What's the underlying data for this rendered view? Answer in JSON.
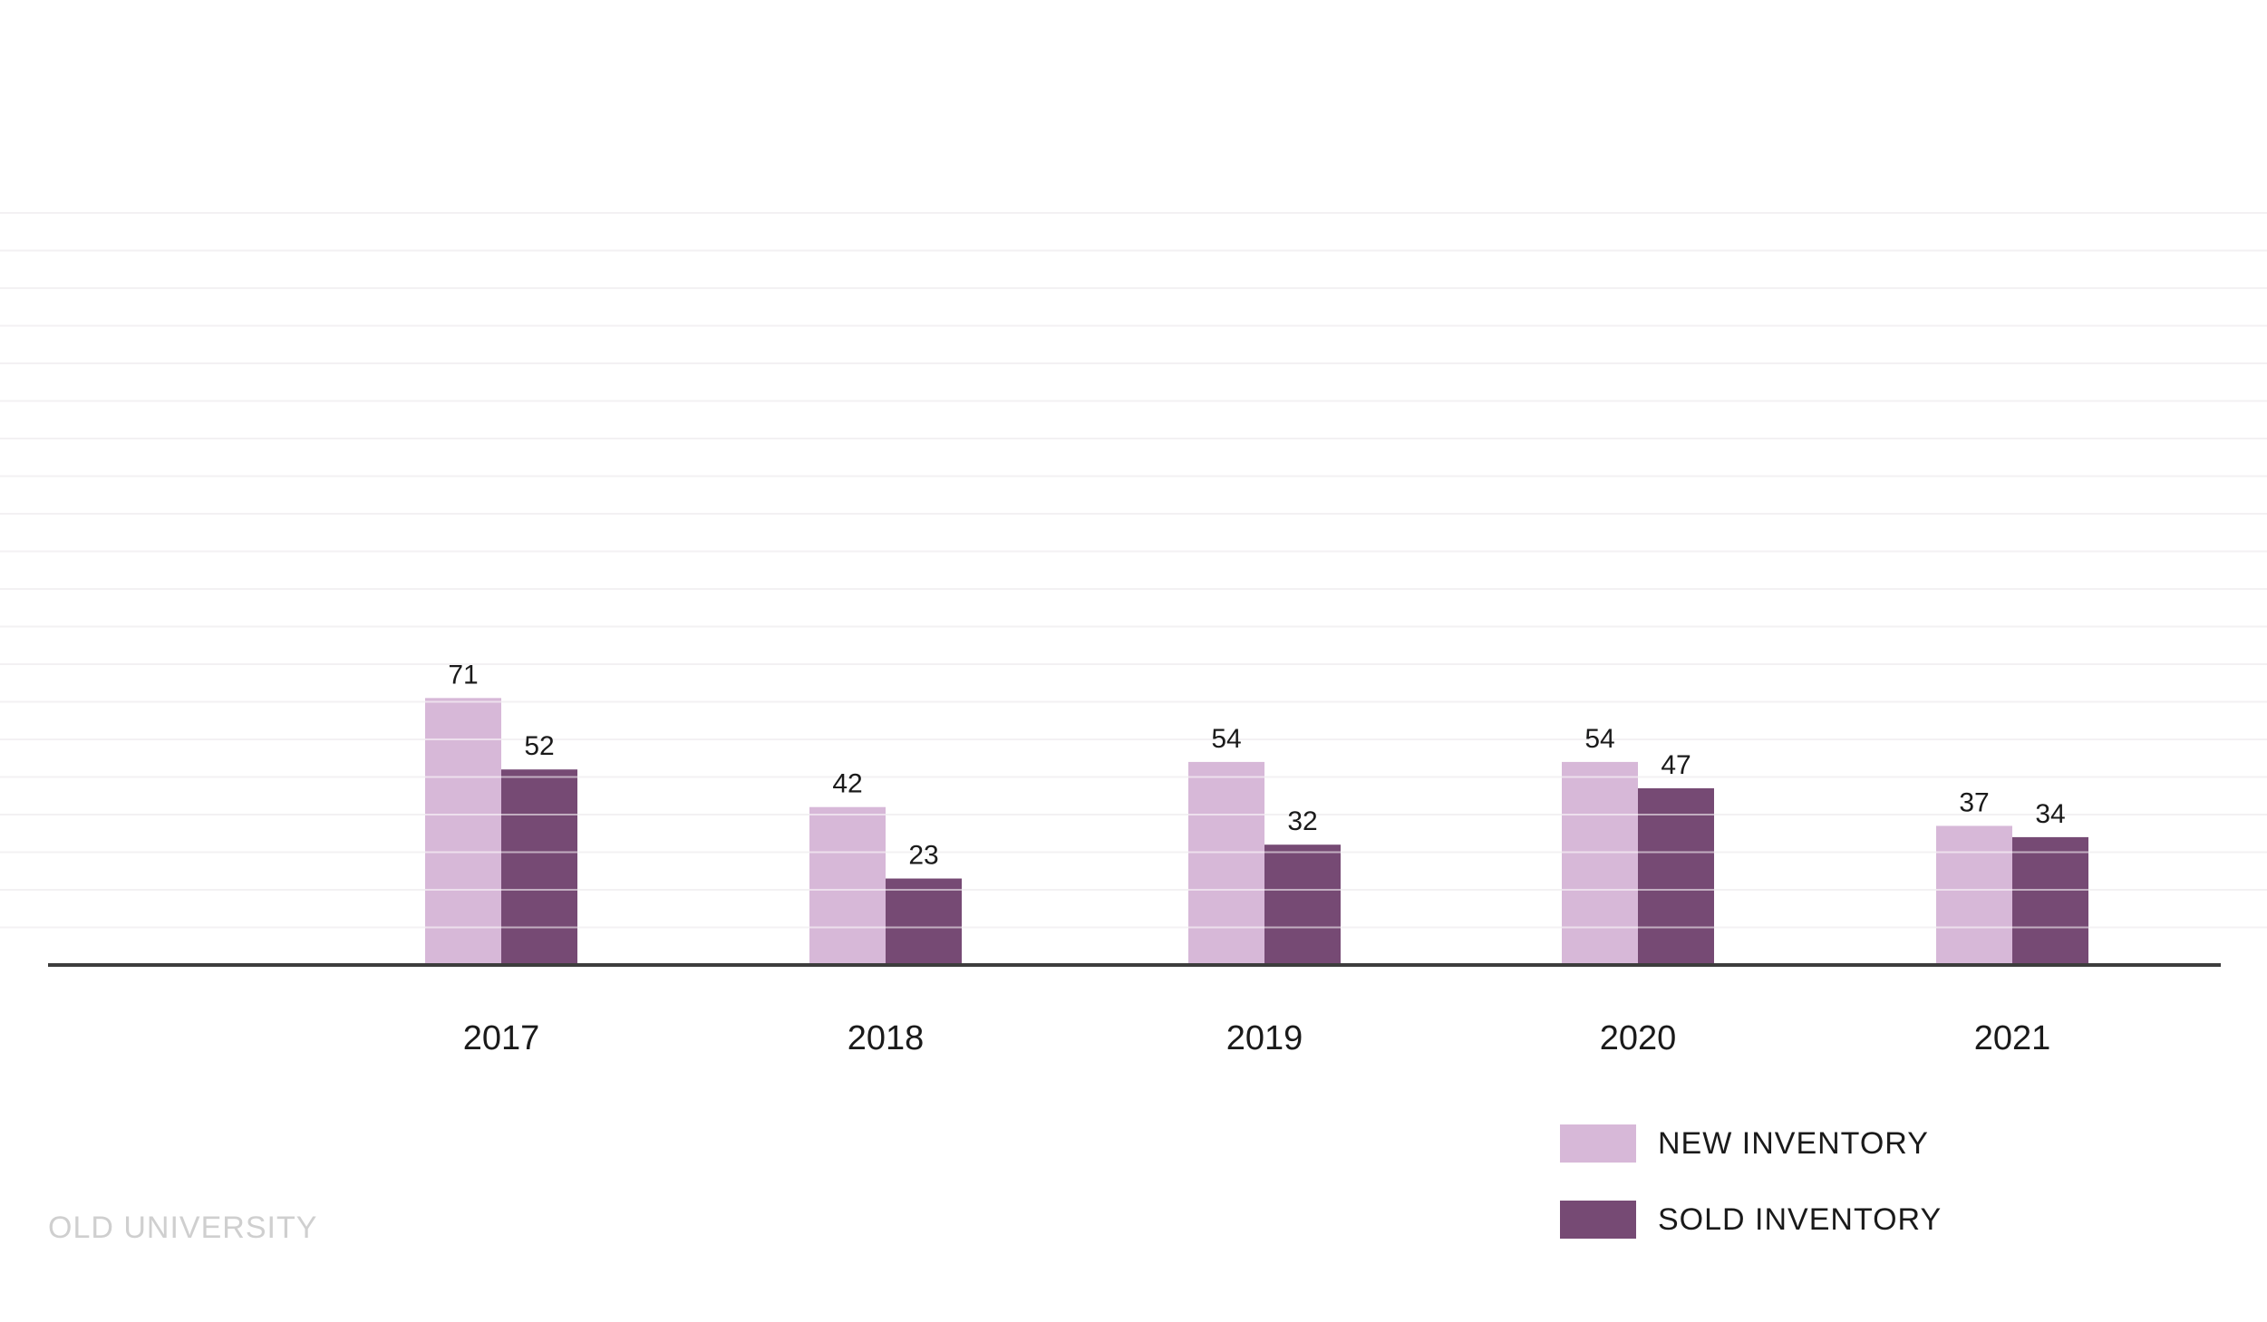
{
  "chart_data": {
    "type": "bar",
    "categories": [
      "2017",
      "2018",
      "2019",
      "2020",
      "2021"
    ],
    "series": [
      {
        "name": "NEW INVENTORY",
        "values": [
          71,
          42,
          54,
          54,
          37
        ],
        "color": "#d7b8d8"
      },
      {
        "name": "SOLD INVENTORY",
        "values": [
          52,
          23,
          32,
          47,
          34
        ],
        "color": "#764a74"
      }
    ],
    "title": "",
    "xlabel": "",
    "ylabel": "",
    "ylim": [
      0,
      200
    ],
    "grid": true,
    "legend_position": "bottom-right"
  },
  "footer": {
    "brand": "OLD UNIVERSITY"
  }
}
